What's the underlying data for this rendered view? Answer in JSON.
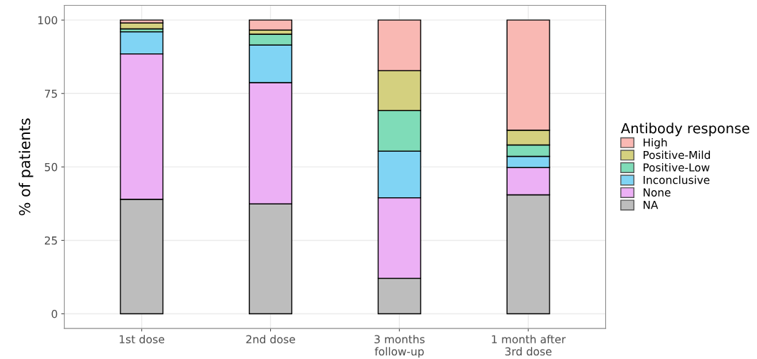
{
  "chart_data": {
    "type": "bar",
    "stacked": true,
    "ylabel": "% of patients",
    "legend_title": "Antibody response",
    "legend": "right",
    "categories": [
      "1st dose",
      "2nd dose",
      "3 months\nfollow-up",
      "1 month after\n3rd dose"
    ],
    "series": [
      {
        "name": "NA",
        "color": "#bdbdbd",
        "values": [
          39,
          37.4,
          12.1,
          40.5
        ]
      },
      {
        "name": "None",
        "color": "#ecb0f5",
        "values": [
          49.5,
          41.3,
          27.4,
          9.3
        ]
      },
      {
        "name": "Inconclusive",
        "color": "#80d4f4",
        "values": [
          7.5,
          12.8,
          15.9,
          3.8
        ]
      },
      {
        "name": "Positive-Low",
        "color": "#7fdcb8",
        "values": [
          1,
          3.7,
          13.8,
          3.9
        ]
      },
      {
        "name": "Positive-Mild",
        "color": "#d4d07f",
        "values": [
          2,
          1.4,
          13.6,
          5
        ]
      },
      {
        "name": "High",
        "color": "#f9b8b3",
        "values": [
          1,
          3.4,
          17.2,
          37.5
        ]
      }
    ],
    "ylim": [
      -5,
      105
    ],
    "yticks": [
      0,
      25,
      50,
      75,
      100
    ],
    "grid": true
  }
}
